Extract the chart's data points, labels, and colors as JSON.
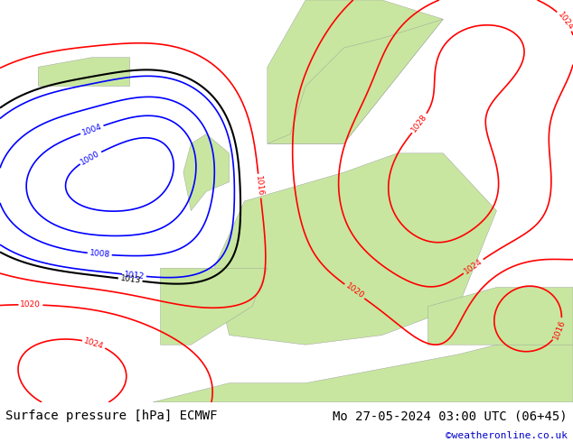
{
  "title_left": "Surface pressure [hPa] ECMWF",
  "title_right": "Mo 27-05-2024 03:00 UTC (06+45)",
  "credit": "©weatheronline.co.uk",
  "bg_color": "#e8e8e8",
  "land_color": "#c8e6a0",
  "ocean_color": "#d8d8d8",
  "contour_levels_red": [
    1016,
    1020,
    1024,
    1028
  ],
  "contour_levels_blue": [
    1004,
    1008,
    1012
  ],
  "contour_levels_black": [
    1013
  ],
  "title_fontsize": 10,
  "credit_fontsize": 8,
  "credit_color": "#0000cc",
  "label_fontsize": 7,
  "footer_bg": "#ffffff"
}
